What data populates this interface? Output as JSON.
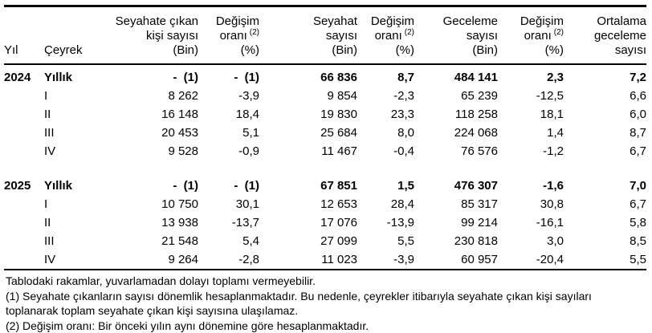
{
  "table": {
    "header": {
      "yil": "Yıl",
      "ceyrek": "Çeyrek",
      "columns": [
        {
          "lines": [
            "Seyahate çıkan",
            "kişi sayısı",
            "(Bin)"
          ]
        },
        {
          "lines": [
            "Değişim",
            "oranı",
            "(%)"
          ],
          "sup": "(2)"
        },
        {
          "lines": [
            "Seyahat",
            "sayısı",
            "(Bin)"
          ]
        },
        {
          "lines": [
            "Değişim",
            "oranı",
            "(%)"
          ],
          "sup": "(2)"
        },
        {
          "lines": [
            "Geceleme",
            "sayısı",
            "(Bin)"
          ]
        },
        {
          "lines": [
            "Değişim",
            "oranı",
            "(%)"
          ],
          "sup": "(2)"
        },
        {
          "lines": [
            "Ortalama",
            "geceleme",
            "sayısı"
          ]
        }
      ]
    },
    "groups": [
      {
        "year": "2024",
        "rows": [
          {
            "quarter": "Yıllık",
            "bold": true,
            "values": [
              "-  (1)",
              "-  (1)",
              "66 836",
              "8,7",
              "484 141",
              "2,3",
              "7,2"
            ]
          },
          {
            "quarter": "I",
            "bold": false,
            "values": [
              "8 262",
              "-3,9",
              "9 854",
              "-2,3",
              "65 239",
              "-12,5",
              "6,6"
            ]
          },
          {
            "quarter": "II",
            "bold": false,
            "values": [
              "16 148",
              "18,4",
              "19 830",
              "23,3",
              "118 258",
              "18,1",
              "6,0"
            ]
          },
          {
            "quarter": "III",
            "bold": false,
            "values": [
              "20 453",
              "5,1",
              "25 684",
              "8,0",
              "224 068",
              "1,4",
              "8,7"
            ]
          },
          {
            "quarter": "IV",
            "bold": false,
            "values": [
              "9 528",
              "-0,9",
              "11 467",
              "-0,4",
              "76 576",
              "-1,2",
              "6,7"
            ]
          }
        ]
      },
      {
        "year": "2025",
        "rows": [
          {
            "quarter": "Yıllık",
            "bold": true,
            "values": [
              "-  (1)",
              "-  (1)",
              "67 851",
              "1,5",
              "476 307",
              "-1,6",
              "7,0"
            ]
          },
          {
            "quarter": "I",
            "bold": false,
            "values": [
              "10 750",
              "30,1",
              "12 653",
              "28,4",
              "85 317",
              "30,8",
              "6,7"
            ]
          },
          {
            "quarter": "II",
            "bold": false,
            "values": [
              "13 938",
              "-13,7",
              "17 076",
              "-13,9",
              "99 214",
              "-16,1",
              "5,8"
            ]
          },
          {
            "quarter": "III",
            "bold": false,
            "values": [
              "21 548",
              "5,4",
              "27 099",
              "5,5",
              "230 818",
              "3,0",
              "8,5"
            ]
          },
          {
            "quarter": "IV",
            "bold": false,
            "values": [
              "9 264",
              "-2,8",
              "11 023",
              "-3,9",
              "60 957",
              "-20,4",
              "5,5"
            ]
          }
        ]
      }
    ]
  },
  "footnotes": [
    "Tablodaki rakamlar, yuvarlamadan dolayı toplamı vermeyebilir.",
    "(1) Seyahate çıkanların sayısı dönemlik hesaplanmaktadır. Bu nedenle, çeyrekler itibarıyla seyahate çıkan kişi sayıları",
    "toplanarak toplam seyahate çıkan kişi sayısına ulaşılamaz.",
    "(2) Değişim oranı: Bir önceki yılın aynı dönemine göre hesaplanmaktadır."
  ],
  "chart_data": {
    "type": "table",
    "columns": [
      "Yıl",
      "Çeyrek",
      "Seyahate çıkan kişi sayısı (Bin)",
      "Değişim oranı (2) (%)",
      "Seyahat sayısı (Bin)",
      "Değişim oranı (2) (%)",
      "Geceleme sayısı (Bin)",
      "Değişim oranı (2) (%)",
      "Ortalama geceleme sayısı"
    ],
    "rows": [
      [
        "2024",
        "Yıllık",
        "- (1)",
        "- (1)",
        "66 836",
        "8,7",
        "484 141",
        "2,3",
        "7,2"
      ],
      [
        "2024",
        "I",
        "8 262",
        "-3,9",
        "9 854",
        "-2,3",
        "65 239",
        "-12,5",
        "6,6"
      ],
      [
        "2024",
        "II",
        "16 148",
        "18,4",
        "19 830",
        "23,3",
        "118 258",
        "18,1",
        "6,0"
      ],
      [
        "2024",
        "III",
        "20 453",
        "5,1",
        "25 684",
        "8,0",
        "224 068",
        "1,4",
        "8,7"
      ],
      [
        "2024",
        "IV",
        "9 528",
        "-0,9",
        "11 467",
        "-0,4",
        "76 576",
        "-1,2",
        "6,7"
      ],
      [
        "2025",
        "Yıllık",
        "- (1)",
        "- (1)",
        "67 851",
        "1,5",
        "476 307",
        "-1,6",
        "7,0"
      ],
      [
        "2025",
        "I",
        "10 750",
        "30,1",
        "12 653",
        "28,4",
        "85 317",
        "30,8",
        "6,7"
      ],
      [
        "2025",
        "II",
        "13 938",
        "-13,7",
        "17 076",
        "-13,9",
        "99 214",
        "-16,1",
        "5,8"
      ],
      [
        "2025",
        "III",
        "21 548",
        "5,4",
        "27 099",
        "5,5",
        "230 818",
        "3,0",
        "8,5"
      ],
      [
        "2025",
        "IV",
        "9 264",
        "-2,8",
        "11 023",
        "-3,9",
        "60 957",
        "-20,4",
        "5,5"
      ]
    ]
  }
}
